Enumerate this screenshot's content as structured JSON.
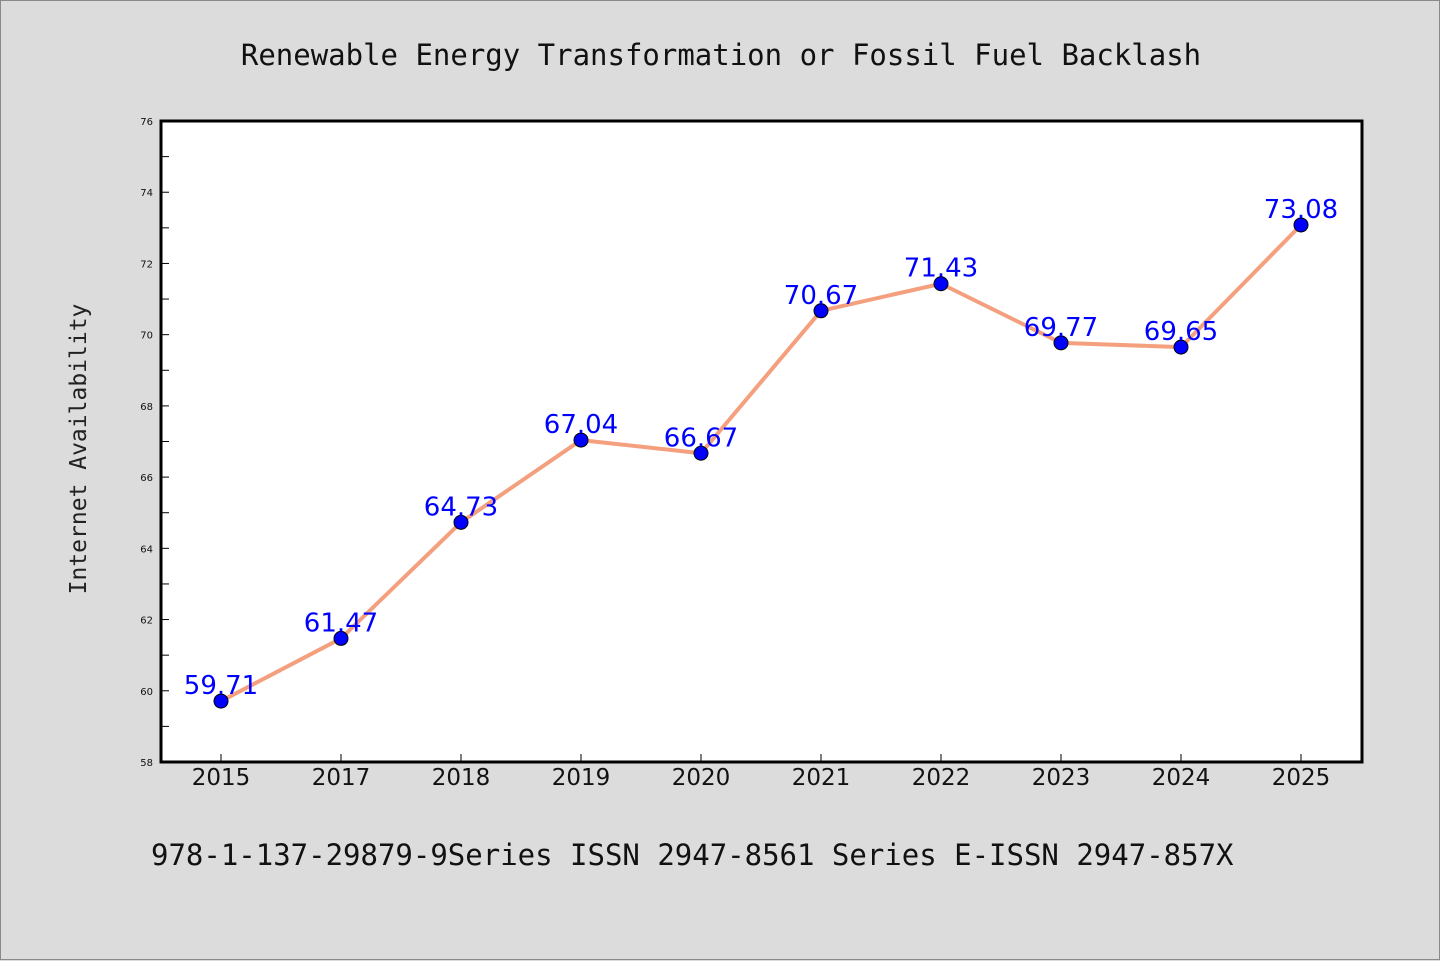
{
  "chart_data": {
    "type": "line",
    "title": "Renewable Energy Transformation or Fossil Fuel Backlash",
    "xlabel": "",
    "ylabel": "Internet Availability",
    "categories": [
      "2015",
      "2017",
      "2018",
      "2019",
      "2020",
      "2021",
      "2022",
      "2023",
      "2024",
      "2025"
    ],
    "series": [
      {
        "values": [
          59.71,
          61.47,
          64.73,
          67.04,
          66.67,
          70.67,
          71.43,
          69.77,
          69.65,
          73.08
        ]
      }
    ],
    "data_labels": [
      "59.71",
      "61.47",
      "64.73",
      "67.04",
      "66.67",
      "70.67",
      "71.43",
      "69.77",
      "69.65",
      "73.08"
    ],
    "ylim": [
      58,
      76
    ],
    "yticks": [
      58,
      60,
      62,
      64,
      66,
      68,
      70,
      72,
      74,
      76
    ],
    "grid": false,
    "legend": "none",
    "colors": {
      "line": "#f4a07e",
      "marker": "#0000ff",
      "label": "#0000ff"
    }
  },
  "footer": "978-1-137-29879-9Series ISSN 2947-8561 Series E-ISSN 2947-857X"
}
